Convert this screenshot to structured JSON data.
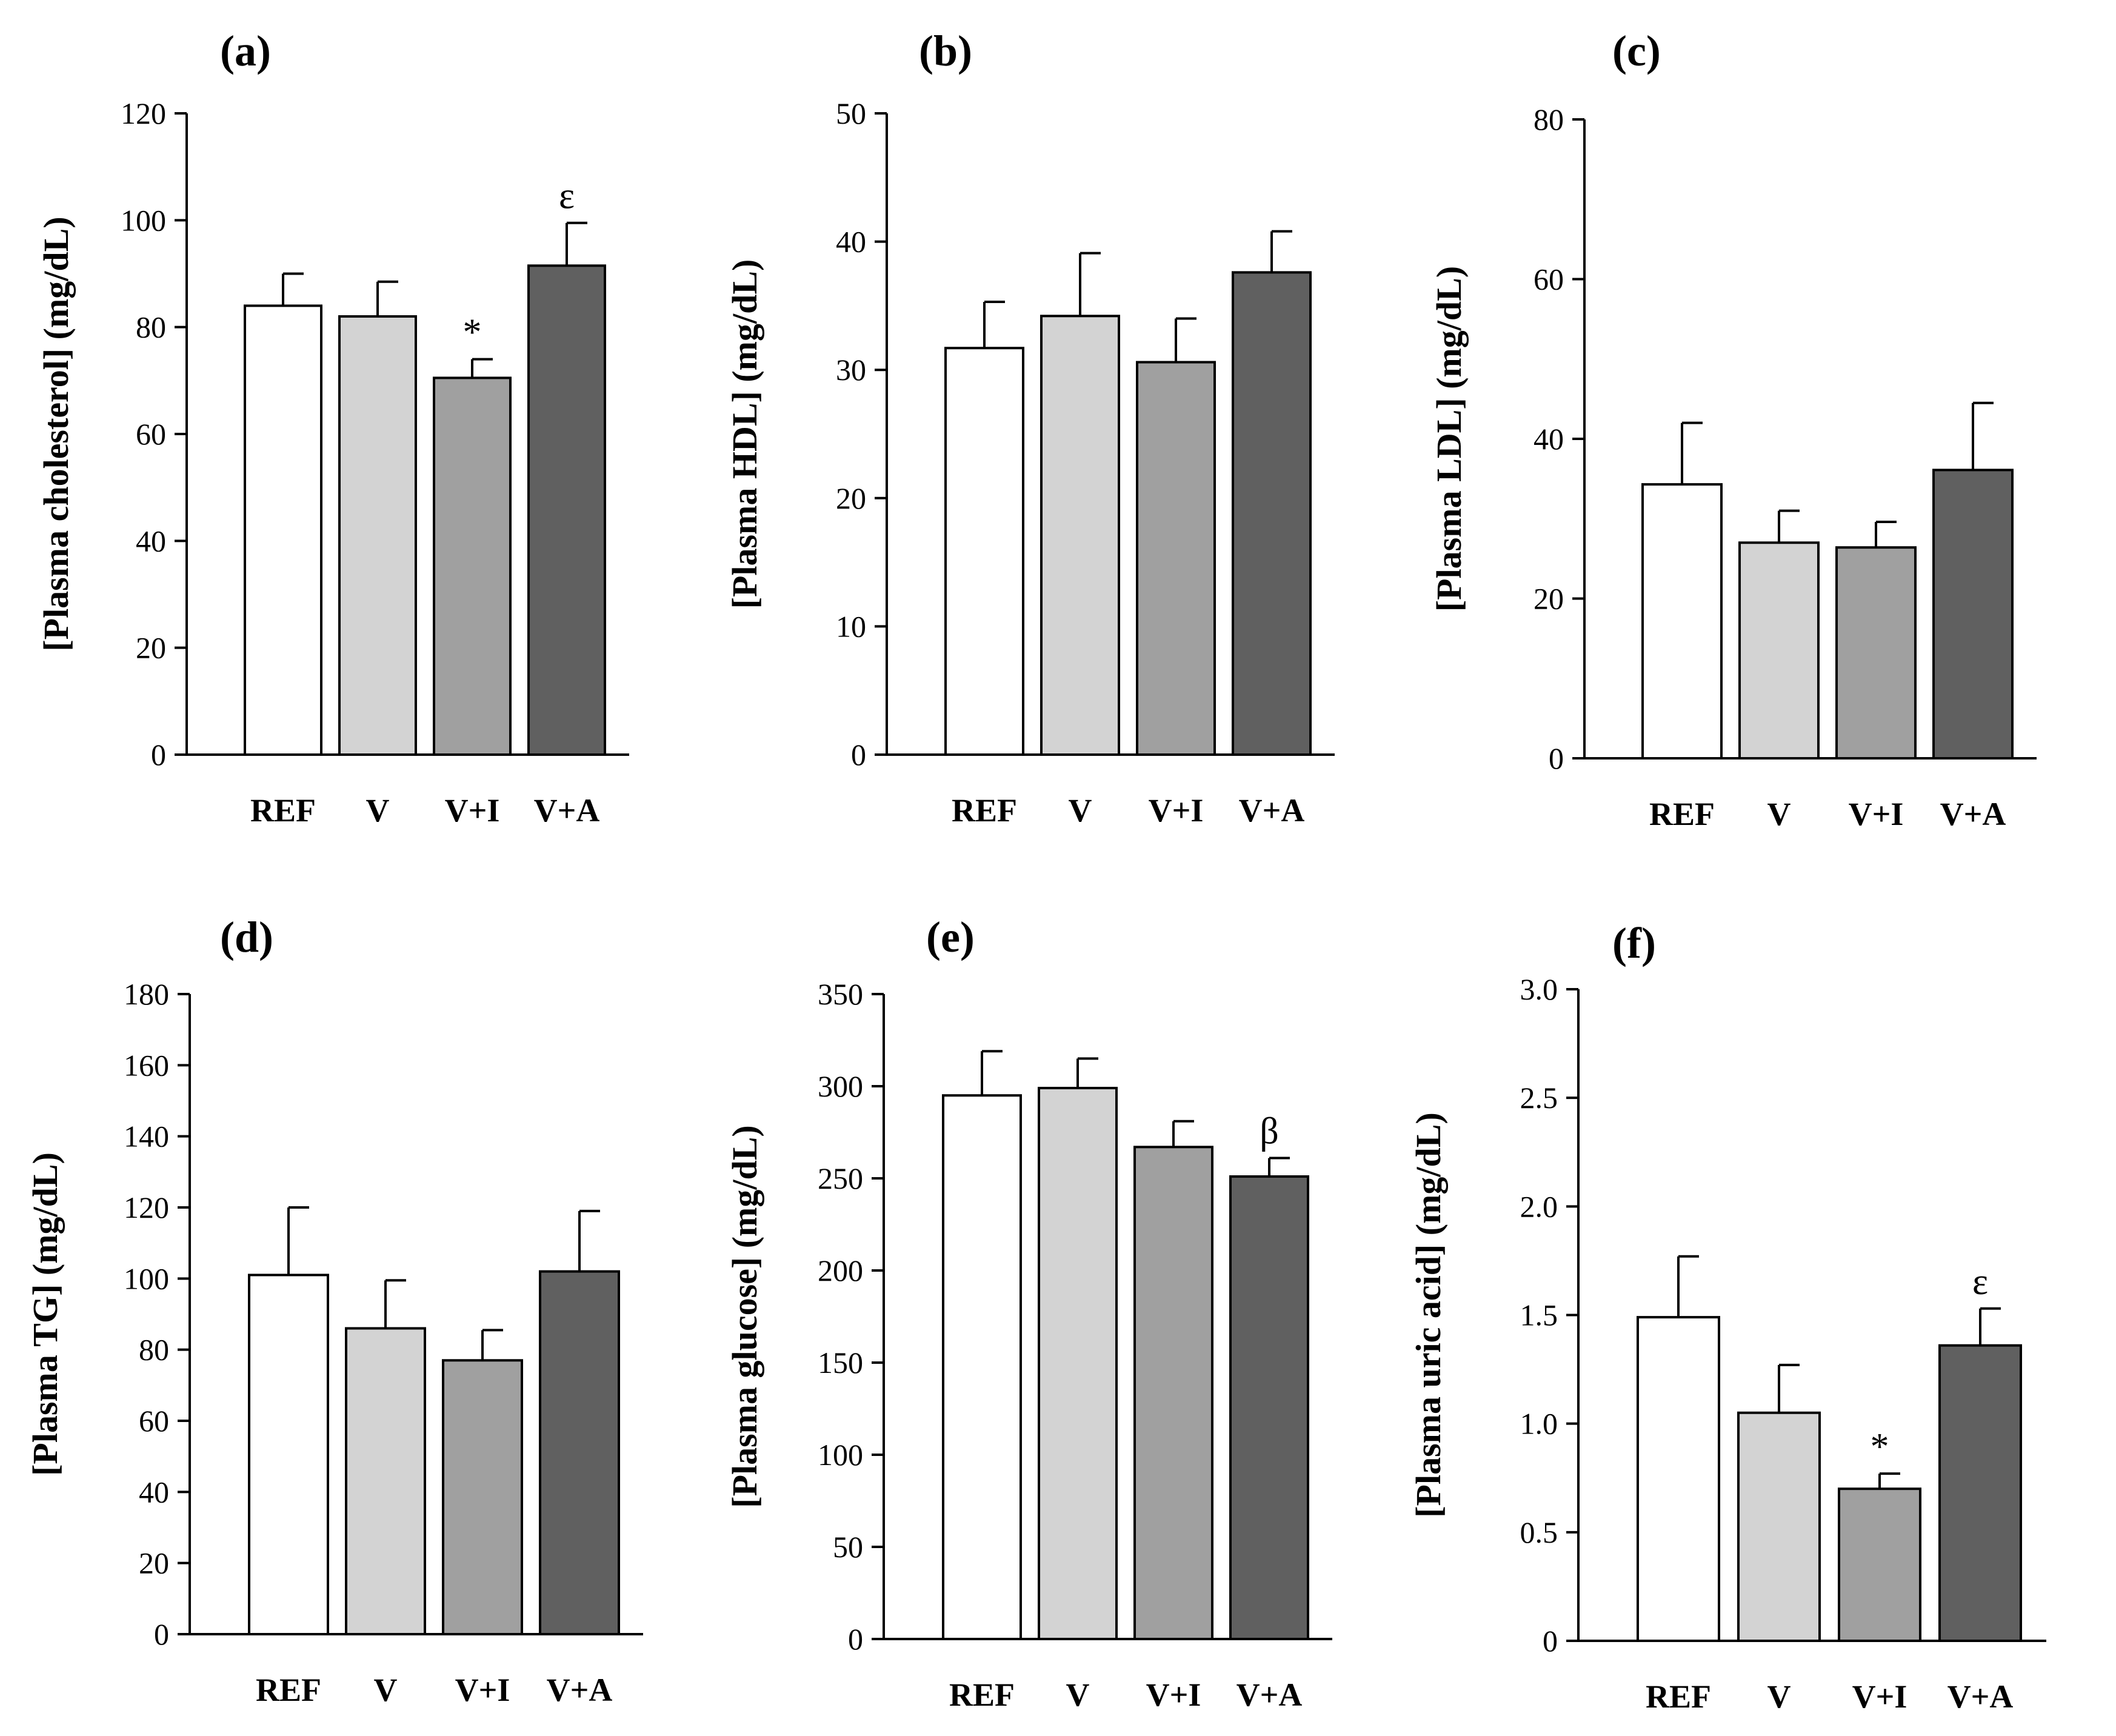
{
  "chart_data": [
    {
      "type": "bar",
      "panel": "(a)",
      "ylabel": "[Plasma cholesterol] (mg/dL)",
      "categories": [
        "REF",
        "V",
        "V+I",
        "V+A"
      ],
      "values": [
        84,
        82,
        70.5,
        91.5
      ],
      "errors": [
        6,
        6.5,
        3.5,
        8
      ],
      "annotations": [
        "",
        "",
        "*",
        "ε"
      ],
      "ylim": [
        0,
        120
      ],
      "yticks": [
        "0",
        "20",
        "40",
        "60",
        "80",
        "100",
        "120"
      ]
    },
    {
      "type": "bar",
      "panel": "(b)",
      "ylabel": "[Plasma HDL] (mg/dL)",
      "categories": [
        "REF",
        "V",
        "V+I",
        "V+A"
      ],
      "values": [
        31.7,
        34.2,
        30.6,
        37.6
      ],
      "errors": [
        3.6,
        4.9,
        3.4,
        3.2
      ],
      "annotations": [
        "",
        "",
        "",
        ""
      ],
      "ylim": [
        0,
        50
      ],
      "yticks": [
        "0",
        "10",
        "20",
        "30",
        "40",
        "50"
      ]
    },
    {
      "type": "bar",
      "panel": "(c)",
      "ylabel": "[Plasma LDL] (mg/dL)",
      "categories": [
        "REF",
        "V",
        "V+I",
        "V+A"
      ],
      "values": [
        34.3,
        27,
        26.4,
        36.1
      ],
      "errors": [
        7.7,
        4,
        3.2,
        8.4
      ],
      "annotations": [
        "",
        "",
        "",
        ""
      ],
      "ylim": [
        0,
        80
      ],
      "yticks": [
        "0",
        "20",
        "40",
        "60",
        "80"
      ]
    },
    {
      "type": "bar",
      "panel": "(d)",
      "ylabel": "[Plasma TG] (mg/dL)",
      "categories": [
        "REF",
        "V",
        "V+I",
        "V+A"
      ],
      "values": [
        101,
        86,
        77,
        102
      ],
      "errors": [
        19,
        13.5,
        8.5,
        17
      ],
      "annotations": [
        "",
        "",
        "",
        ""
      ],
      "ylim": [
        0,
        180
      ],
      "yticks": [
        "0",
        "20",
        "40",
        "60",
        "80",
        "100",
        "120",
        "140",
        "160",
        "180"
      ]
    },
    {
      "type": "bar",
      "panel": "(e)",
      "ylabel": "[Plasma glucose] (mg/dL)",
      "categories": [
        "REF",
        "V",
        "V+I",
        "V+A"
      ],
      "values": [
        295,
        299,
        267,
        251
      ],
      "errors": [
        24,
        16,
        14,
        10
      ],
      "annotations": [
        "",
        "",
        "",
        "β"
      ],
      "ylim": [
        0,
        350
      ],
      "yticks": [
        "0",
        "50",
        "100",
        "150",
        "200",
        "250",
        "300",
        "350"
      ]
    },
    {
      "type": "bar",
      "panel": "(f)",
      "ylabel": "[Plasma uric acid] (mg/dL)",
      "categories": [
        "REF",
        "V",
        "V+I",
        "V+A"
      ],
      "values": [
        1.49,
        1.05,
        0.7,
        1.36
      ],
      "errors": [
        0.28,
        0.22,
        0.07,
        0.17
      ],
      "annotations": [
        "",
        "",
        "*",
        "ε"
      ],
      "ylim": [
        0,
        3
      ],
      "yticks": [
        "0",
        "0.5",
        "1.0",
        "1.5",
        "2.0",
        "2.5",
        "3.0"
      ]
    }
  ],
  "colors": {
    "REF": "#ffffff",
    "V": "#d3d3d3",
    "V+I": "#a0a0a0",
    "V+A": "#606060"
  }
}
